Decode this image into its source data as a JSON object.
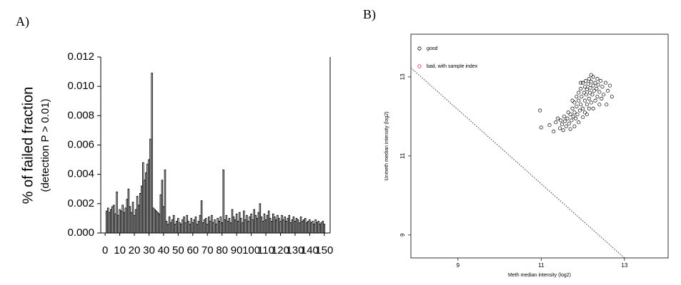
{
  "chart_data": [
    {
      "type": "bar",
      "panel_label": "A)",
      "ylabel": [
        "% of failed fraction",
        "(detection P > 0.01)"
      ],
      "x": [
        1,
        2,
        3,
        4,
        5,
        6,
        7,
        8,
        9,
        10,
        11,
        12,
        13,
        14,
        15,
        16,
        17,
        18,
        19,
        20,
        21,
        22,
        23,
        24,
        25,
        26,
        27,
        28,
        29,
        30,
        31,
        32,
        33,
        34,
        35,
        36,
        37,
        38,
        39,
        40,
        41,
        42,
        43,
        44,
        45,
        46,
        47,
        48,
        49,
        50,
        51,
        52,
        53,
        54,
        55,
        56,
        57,
        58,
        59,
        60,
        61,
        62,
        63,
        64,
        65,
        66,
        67,
        68,
        69,
        70,
        71,
        72,
        73,
        74,
        75,
        76,
        77,
        78,
        79,
        80,
        81,
        82,
        83,
        84,
        85,
        86,
        87,
        88,
        89,
        90,
        91,
        92,
        93,
        94,
        95,
        96,
        97,
        98,
        99,
        100,
        101,
        102,
        103,
        104,
        105,
        106,
        107,
        108,
        109,
        110,
        111,
        112,
        113,
        114,
        115,
        116,
        117,
        118,
        119,
        120,
        121,
        122,
        123,
        124,
        125,
        126,
        127,
        128,
        129,
        130,
        131,
        132,
        133,
        134,
        135,
        136,
        137,
        138,
        139,
        140,
        141,
        142,
        143,
        144,
        145,
        146,
        147,
        148,
        149,
        150
      ],
      "values": [
        0.0015,
        0.0017,
        0.0014,
        0.0016,
        0.0018,
        0.0019,
        0.0013,
        0.0028,
        0.0012,
        0.0016,
        0.0015,
        0.0019,
        0.0014,
        0.0017,
        0.0023,
        0.003,
        0.0018,
        0.0014,
        0.0021,
        0.0012,
        0.0016,
        0.0025,
        0.0019,
        0.0027,
        0.0032,
        0.0048,
        0.0036,
        0.0041,
        0.0047,
        0.005,
        0.0064,
        0.0109,
        0.0017,
        0.0016,
        0.0015,
        0.0014,
        0.0013,
        0.0026,
        0.0036,
        0.0018,
        0.0043,
        0.0008,
        0.0006,
        0.0011,
        0.0007,
        0.0009,
        0.0012,
        0.0006,
        0.0008,
        0.001,
        0.0007,
        0.0006,
        0.0009,
        0.0011,
        0.0007,
        0.0012,
        0.0008,
        0.0006,
        0.001,
        0.0007,
        0.0009,
        0.0011,
        0.0006,
        0.0008,
        0.0012,
        0.0022,
        0.0007,
        0.0009,
        0.001,
        0.0006,
        0.0011,
        0.0008,
        0.0012,
        0.0007,
        0.0009,
        0.0006,
        0.001,
        0.0008,
        0.0011,
        0.0007,
        0.0043,
        0.0009,
        0.0012,
        0.0008,
        0.001,
        0.0007,
        0.0016,
        0.0011,
        0.0009,
        0.0013,
        0.0008,
        0.0014,
        0.001,
        0.0007,
        0.0015,
        0.0009,
        0.0012,
        0.0008,
        0.0011,
        0.0013,
        0.0009,
        0.0016,
        0.0012,
        0.001,
        0.0014,
        0.002,
        0.0011,
        0.0008,
        0.0013,
        0.0009,
        0.0012,
        0.0015,
        0.001,
        0.0008,
        0.0013,
        0.0011,
        0.0009,
        0.0012,
        0.001,
        0.0008,
        0.0012,
        0.0009,
        0.0011,
        0.0008,
        0.001,
        0.0012,
        0.0007,
        0.0009,
        0.0011,
        0.0008,
        0.001,
        0.0009,
        0.0007,
        0.0011,
        0.0008,
        0.0009,
        0.001,
        0.0007,
        0.0008,
        0.0009,
        0.0007,
        0.0008,
        0.0006,
        0.0009,
        0.0007,
        0.0008,
        0.0006,
        0.0007,
        0.0008,
        0.0006
      ],
      "color": "#ffffff",
      "edgecolor": "#000000",
      "xlim": [
        -3,
        154
      ],
      "xticks": [
        0,
        10,
        20,
        30,
        40,
        50,
        60,
        70,
        80,
        90,
        100,
        110,
        120,
        130,
        140,
        150
      ],
      "ylim": [
        0,
        0.012
      ],
      "yticks": [
        {
          "value": 0,
          "label": "0.000"
        },
        {
          "value": 0.002,
          "label": "0.002"
        },
        {
          "value": 0.004,
          "label": "0.004"
        },
        {
          "value": 0.006,
          "label": "0.006"
        },
        {
          "value": 0.008,
          "label": "0.008"
        },
        {
          "value": 0.01,
          "label": "0.010"
        },
        {
          "value": 0.012,
          "label": "0.012"
        }
      ]
    },
    {
      "type": "scatter",
      "panel_label": "B)",
      "xlabel": "Meth median intensity (log2)",
      "ylabel": "Unmeth median intensity (log2)",
      "xlim": [
        7.87,
        14.05
      ],
      "ylim": [
        8.42,
        14.08
      ],
      "xticks": [
        9,
        11,
        13
      ],
      "yticks": [
        9,
        11,
        13
      ],
      "legend": "upper left",
      "series": [
        {
          "name": "good",
          "color": "#000000",
          "x": [
            11.0,
            10.97,
            11.2,
            11.3,
            11.35,
            11.4,
            11.45,
            11.47,
            11.5,
            11.53,
            11.55,
            11.57,
            11.6,
            11.63,
            11.65,
            11.67,
            11.7,
            11.73,
            11.75,
            11.77,
            11.8,
            11.8,
            11.83,
            11.85,
            11.85,
            11.87,
            11.9,
            11.9,
            11.93,
            11.95,
            11.95,
            11.97,
            12.0,
            12.0,
            12.03,
            12.05,
            12.05,
            12.07,
            12.08,
            12.1,
            12.1,
            12.13,
            12.15,
            12.15,
            12.17,
            12.18,
            12.2,
            12.2,
            12.23,
            12.25,
            12.25,
            12.27,
            12.3,
            12.3,
            12.33,
            12.35,
            12.35,
            12.37,
            12.4,
            12.43,
            12.45,
            12.47,
            12.5,
            12.55,
            12.57,
            12.6,
            12.65,
            12.7,
            12.05,
            12.0,
            11.9,
            11.7,
            11.8,
            12.15,
            12.1,
            11.75,
            11.95,
            12.2,
            12.25,
            12.4
          ],
          "y": [
            11.72,
            12.15,
            11.78,
            11.62,
            11.85,
            11.95,
            11.7,
            11.9,
            11.8,
            11.65,
            12.0,
            11.88,
            11.75,
            11.95,
            12.1,
            11.82,
            12.05,
            11.9,
            12.2,
            12.0,
            12.1,
            12.35,
            11.95,
            12.25,
            12.5,
            12.05,
            12.4,
            12.6,
            12.15,
            12.3,
            12.7,
            12.5,
            12.85,
            12.2,
            12.6,
            12.4,
            12.75,
            12.9,
            12.55,
            12.3,
            12.68,
            12.82,
            12.45,
            12.95,
            12.6,
            12.72,
            12.88,
            12.35,
            12.55,
            12.78,
            13.0,
            12.65,
            12.85,
            12.4,
            12.7,
            12.95,
            12.5,
            12.8,
            12.62,
            12.9,
            12.45,
            12.75,
            12.55,
            12.85,
            12.3,
            12.65,
            12.78,
            12.5,
            12.1,
            11.98,
            11.85,
            11.68,
            11.75,
            12.2,
            12.05,
            12.4,
            12.85,
            13.05,
            12.2,
            12.3
          ]
        },
        {
          "name": "bad, with sample index",
          "color": "#e0307a",
          "x": [],
          "y": []
        }
      ],
      "reference_line": {
        "x": [
          7.87,
          13.0
        ],
        "y": [
          13.23,
          8.42
        ]
      }
    }
  ]
}
